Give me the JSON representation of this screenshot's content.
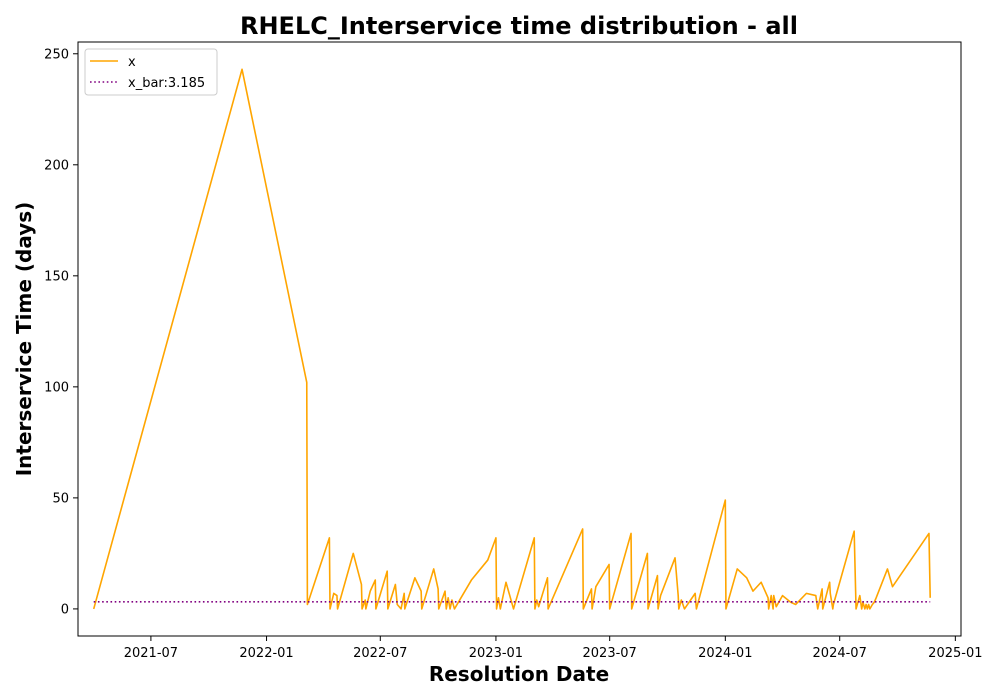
{
  "chart_data": {
    "type": "line",
    "title": "RHELC_Interservice time distribution - all",
    "xlabel": "Resolution Date",
    "ylabel": "Interservice Time (days)",
    "xlim": [
      "2021-03-07",
      "2025-01-10"
    ],
    "ylim": [
      -12.2,
      255.3
    ],
    "x_ticks": [
      {
        "label": "2021-07",
        "date": "2021-07-01"
      },
      {
        "label": "2022-01",
        "date": "2022-01-01"
      },
      {
        "label": "2022-07",
        "date": "2022-07-01"
      },
      {
        "label": "2023-01",
        "date": "2023-01-01"
      },
      {
        "label": "2023-07",
        "date": "2023-07-01"
      },
      {
        "label": "2024-01",
        "date": "2024-01-01"
      },
      {
        "label": "2024-07",
        "date": "2024-07-01"
      },
      {
        "label": "2025-01",
        "date": "2025-01-01"
      }
    ],
    "y_ticks": [
      0,
      50,
      100,
      150,
      200,
      250
    ],
    "grid": false,
    "legend": {
      "position": "top-left"
    },
    "series": [
      {
        "name": "x",
        "color": "#FFA500",
        "style": "solid",
        "x": [
          "2021-04-01",
          "2021-11-23",
          "2022-03-06",
          "2022-03-07",
          "2022-04-11",
          "2022-04-12",
          "2022-04-18",
          "2022-04-23",
          "2022-04-24",
          "2022-05-19",
          "2022-06-01",
          "2022-06-02",
          "2022-06-07",
          "2022-06-08",
          "2022-06-15",
          "2022-06-23",
          "2022-06-24",
          "2022-07-12",
          "2022-07-13",
          "2022-07-25",
          "2022-07-28",
          "2022-08-03",
          "2022-08-08",
          "2022-08-09",
          "2022-08-25",
          "2022-09-04",
          "2022-09-05",
          "2022-09-24",
          "2022-10-01",
          "2022-10-02",
          "2022-10-12",
          "2022-10-14",
          "2022-10-17",
          "2022-10-20",
          "2022-10-23",
          "2022-10-27",
          "2022-11-23",
          "2022-12-19",
          "2023-01-01",
          "2023-01-02",
          "2023-01-05",
          "2023-01-08",
          "2023-01-17",
          "2023-01-29",
          "2023-01-30",
          "2023-03-03",
          "2023-03-04",
          "2023-03-07",
          "2023-03-10",
          "2023-03-24",
          "2023-03-25",
          "2023-05-19",
          "2023-05-20",
          "2023-06-02",
          "2023-06-03",
          "2023-06-09",
          "2023-06-30",
          "2023-07-01",
          "2023-08-04",
          "2023-08-05",
          "2023-08-30",
          "2023-08-31",
          "2023-09-15",
          "2023-09-16",
          "2023-09-20",
          "2023-10-13",
          "2023-10-18",
          "2023-10-19",
          "2023-10-23",
          "2023-10-28",
          "2023-11-14",
          "2023-11-16",
          "2024-01-01",
          "2024-01-02",
          "2024-01-20",
          "2024-02-04",
          "2024-02-14",
          "2024-02-27",
          "2024-03-09",
          "2024-03-10",
          "2024-03-14",
          "2024-03-17",
          "2024-03-18",
          "2024-03-22",
          "2024-04-01",
          "2024-04-14",
          "2024-04-22",
          "2024-05-09",
          "2024-05-24",
          "2024-05-27",
          "2024-06-03",
          "2024-06-04",
          "2024-06-15",
          "2024-06-16",
          "2024-06-20",
          "2024-06-21",
          "2024-07-24",
          "2024-07-27",
          "2024-08-02",
          "2024-08-05",
          "2024-08-07",
          "2024-08-10",
          "2024-08-12",
          "2024-08-14",
          "2024-08-16",
          "2024-08-18",
          "2024-08-22",
          "2024-08-25",
          "2024-08-28",
          "2024-09-15",
          "2024-09-23",
          "2024-11-20",
          "2024-11-22"
        ],
        "values": [
          0,
          243,
          102,
          2,
          32,
          0,
          7,
          6,
          0,
          25,
          11,
          0,
          4,
          0,
          8,
          13,
          0,
          17,
          0,
          11,
          2,
          0,
          7,
          0,
          14,
          8,
          0,
          18,
          9,
          0,
          8,
          0,
          5,
          0,
          4,
          0,
          13,
          22,
          32,
          0,
          5,
          0,
          12,
          0,
          1,
          32,
          0,
          4,
          1,
          14,
          0,
          36,
          0,
          9,
          0,
          10,
          20,
          0,
          34,
          0,
          25,
          0,
          15,
          0,
          6,
          23,
          6,
          0,
          4,
          0,
          7,
          0,
          49,
          0,
          18,
          14,
          8,
          12,
          5,
          0,
          6,
          0,
          6,
          1,
          6,
          3,
          2,
          7,
          6,
          0,
          9,
          0,
          12,
          7,
          0,
          2,
          35,
          0,
          6,
          0,
          3,
          0,
          2,
          0,
          2,
          0,
          2,
          3,
          5,
          18,
          10,
          34,
          5
        ]
      },
      {
        "name": "x_bar:3.185",
        "color": "#800080",
        "style": "dotted",
        "x": [
          "2021-04-01",
          "2024-11-22"
        ],
        "values": [
          3.185,
          3.185
        ]
      }
    ]
  }
}
